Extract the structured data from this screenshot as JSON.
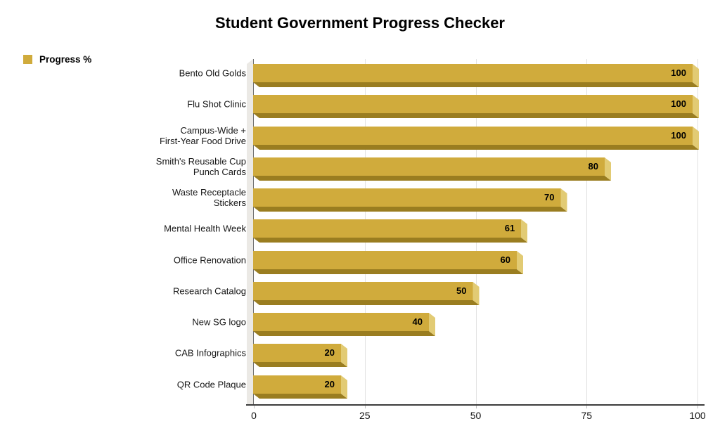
{
  "title": "Student Government Progress Checker",
  "legend": {
    "label": "Progress %",
    "position": "top-left"
  },
  "colors": {
    "bar_front": "#d0ab3c",
    "bar_end_cap": "#e2cb74",
    "bar_bottom": "#9a7d20",
    "wall": "#ebe9e5",
    "gridline": "#e1e1e1",
    "x_axis_line": "#3c3c3c",
    "y_axis_line": "#707070",
    "text": "#000000"
  },
  "chart_data": {
    "type": "bar",
    "orientation": "horizontal",
    "style": "3d",
    "title": "Student Government Progress Checker",
    "series_name": "Progress %",
    "categories": [
      "Bento Old Golds",
      "Flu Shot Clinic",
      "Campus-Wide +\nFirst-Year Food Drive",
      "Smith's Reusable Cup\nPunch Cards",
      "Waste Receptacle\nStickers",
      "Mental Health Week",
      "Office Renovation",
      "Research Catalog",
      "New SG logo",
      "CAB Infographics",
      "QR Code Plaque"
    ],
    "values": [
      100,
      100,
      100,
      80,
      70,
      61,
      60,
      50,
      40,
      20,
      20
    ],
    "value_labels_shown": true,
    "xlabel": "",
    "ylabel": "",
    "xlim": [
      0,
      100
    ],
    "x_ticks": [
      0,
      25,
      50,
      75,
      100
    ],
    "grid": true,
    "legend_position": "top-left",
    "bar_color": "#d0ab3c"
  }
}
